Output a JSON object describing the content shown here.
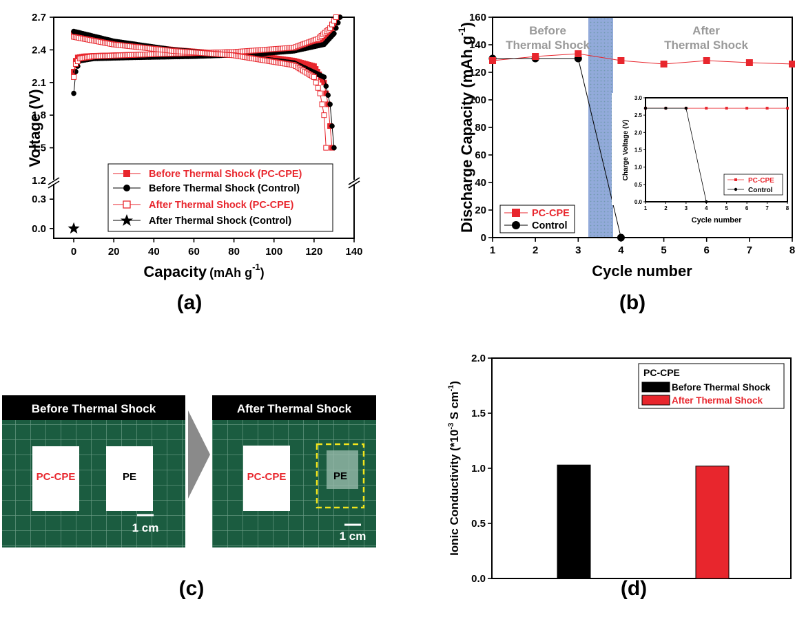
{
  "chart_data": [
    {
      "panel": "(a)",
      "type": "line",
      "xlabel_main": "Capacity",
      "xlabel_unit": "(mAh g",
      "xlabel_sup": "-1",
      "xlabel_close": ")",
      "ylabel": "Voltage (V)",
      "xlim": [
        -10,
        140
      ],
      "xticks": [
        "0",
        "20",
        "40",
        "60",
        "80",
        "100",
        "120",
        "140"
      ],
      "yticks_upper": [
        "1.2",
        "1.5",
        "1.8",
        "2.1",
        "2.4",
        "2.7"
      ],
      "yticks_lower": [
        "0.0",
        "0.3"
      ],
      "ylim_upper": [
        1.2,
        2.7
      ],
      "ylim_lower": [
        -0.1,
        0.4
      ],
      "axis_break": true,
      "legend": [
        {
          "label": "Before Thermal Shock (PC-CPE)",
          "color": "#e8262d",
          "marker": "filled-square"
        },
        {
          "label": "Before Thermal Shock (Control)",
          "color": "#000000",
          "marker": "filled-circle"
        },
        {
          "label": "After Thermal Shock (PC-CPE)",
          "color": "#e8262d",
          "marker": "open-square"
        },
        {
          "label": "After Thermal Shock (Control)",
          "color": "#000000",
          "marker": "star"
        }
      ],
      "series": [
        {
          "name": "Before Thermal Shock (PC-CPE) charge",
          "x": [
            0,
            1,
            2,
            5,
            10,
            20,
            40,
            60,
            80,
            100,
            115,
            125,
            130,
            132
          ],
          "y": [
            2.2,
            2.3,
            2.33,
            2.34,
            2.345,
            2.35,
            2.36,
            2.37,
            2.38,
            2.4,
            2.43,
            2.5,
            2.62,
            2.7
          ]
        },
        {
          "name": "Before Thermal Shock (PC-CPE) discharge",
          "x": [
            0,
            10,
            30,
            50,
            70,
            90,
            110,
            120,
            125,
            127,
            128,
            129
          ],
          "y": [
            2.55,
            2.5,
            2.44,
            2.4,
            2.37,
            2.35,
            2.3,
            2.25,
            2.1,
            1.9,
            1.7,
            1.5
          ]
        },
        {
          "name": "Before Thermal Shock (Control) charge",
          "x": [
            0,
            1,
            3,
            10,
            30,
            60,
            90,
            110,
            125,
            130,
            133
          ],
          "y": [
            2.0,
            2.2,
            2.3,
            2.32,
            2.33,
            2.34,
            2.36,
            2.39,
            2.45,
            2.55,
            2.7
          ]
        },
        {
          "name": "Before Thermal Shock (Control) discharge",
          "x": [
            0,
            20,
            50,
            80,
            110,
            125,
            128,
            129,
            130
          ],
          "y": [
            2.57,
            2.48,
            2.4,
            2.35,
            2.28,
            2.15,
            1.9,
            1.7,
            1.5
          ]
        },
        {
          "name": "After Thermal Shock (PC-CPE) charge",
          "x": [
            0,
            1,
            3,
            10,
            40,
            80,
            110,
            122,
            128,
            131
          ],
          "y": [
            2.15,
            2.27,
            2.32,
            2.34,
            2.36,
            2.38,
            2.42,
            2.5,
            2.6,
            2.7
          ]
        },
        {
          "name": "After Thermal Shock (PC-CPE) discharge",
          "x": [
            0,
            20,
            50,
            80,
            110,
            120,
            123,
            125,
            126
          ],
          "y": [
            2.52,
            2.45,
            2.39,
            2.35,
            2.26,
            2.15,
            2.0,
            1.8,
            1.5
          ]
        },
        {
          "name": "After Thermal Shock (Control)",
          "x": [
            0
          ],
          "y": [
            0.0
          ]
        }
      ],
      "colors": {
        "red": "#e8262d",
        "black": "#000000"
      }
    },
    {
      "panel": "(b)",
      "type": "line",
      "xlabel": "Cycle number",
      "ylabel_main": "Discharge Capacity (mAh g",
      "ylabel_sup": "-1",
      "ylabel_close": ")",
      "xlim": [
        1,
        8
      ],
      "ylim": [
        0,
        160
      ],
      "xticks": [
        "1",
        "2",
        "3",
        "4",
        "5",
        "6",
        "7",
        "8"
      ],
      "yticks": [
        "0",
        "20",
        "40",
        "60",
        "80",
        "100",
        "120",
        "140",
        "160"
      ],
      "annotations": [
        "Before",
        "Thermal Shock",
        "After",
        "Thermal Shock"
      ],
      "shaded_band": {
        "from": 3.25,
        "to": 3.8,
        "color": "#7f9bd3"
      },
      "legend": [
        {
          "label": "PC-CPE",
          "color": "#e8262d"
        },
        {
          "label": "Control",
          "color": "#000000"
        }
      ],
      "series": [
        {
          "name": "PC-CPE",
          "x": [
            1,
            2,
            3,
            4,
            5,
            6,
            7,
            8
          ],
          "y": [
            128.5,
            131.5,
            133.5,
            128.5,
            126,
            128.5,
            127,
            126
          ]
        },
        {
          "name": "Control",
          "x": [
            1,
            2,
            3,
            4
          ],
          "y": [
            130,
            130,
            130,
            0
          ]
        }
      ],
      "inset": {
        "type": "line",
        "xlabel": "Cycle number",
        "ylabel": "Charge Voltage (V)",
        "xlim": [
          1,
          8
        ],
        "ylim": [
          0,
          3.0
        ],
        "xticks": [
          "1",
          "2",
          "3",
          "4",
          "5",
          "6",
          "7",
          "8"
        ],
        "yticks": [
          "0.0",
          "0.5",
          "1.0",
          "1.5",
          "2.0",
          "2.5",
          "3.0"
        ],
        "legend": [
          {
            "label": "PC-CPE",
            "color": "#e8262d"
          },
          {
            "label": "Control",
            "color": "#000000"
          }
        ],
        "series": [
          {
            "name": "PC-CPE",
            "x": [
              1,
              2,
              3,
              4,
              5,
              6,
              7,
              8
            ],
            "y": [
              2.7,
              2.7,
              2.7,
              2.7,
              2.7,
              2.7,
              2.7,
              2.7
            ]
          },
          {
            "name": "Control",
            "x": [
              1,
              2,
              3,
              4
            ],
            "y": [
              2.7,
              2.7,
              2.7,
              0
            ]
          }
        ]
      }
    },
    {
      "panel": "(d)",
      "type": "bar",
      "ylabel_main": "Ionic Conductivity (*10",
      "ylabel_sup1": "-3",
      "ylabel_mid": " S cm",
      "ylabel_sup2": "-1",
      "ylabel_close": ")",
      "ylim": [
        0,
        2.0
      ],
      "yticks": [
        "0.0",
        "0.5",
        "1.0",
        "1.5",
        "2.0"
      ],
      "legend_title": "PC-CPE",
      "legend": [
        {
          "label": "Before Thermal Shock",
          "color": "#000000"
        },
        {
          "label": "After Thermal Shock",
          "color": "#e8262d"
        }
      ],
      "categories": [
        "Before Thermal Shock",
        "After Thermal Shock"
      ],
      "values": [
        1.03,
        1.02
      ],
      "colors": [
        "#000000",
        "#e8262d"
      ]
    }
  ],
  "photos": {
    "before": {
      "title": "Before  Thermal Shock",
      "sample_left": "PC-CPE",
      "sample_right": "PE",
      "scale": "1 cm"
    },
    "after": {
      "title": "After Thermal Shock",
      "sample_left": "PC-CPE",
      "sample_right": "PE",
      "scale": "1 cm"
    }
  },
  "panel_labels": {
    "a": "(a)",
    "b": "(b)",
    "c": "(c)",
    "d": "(d)"
  }
}
